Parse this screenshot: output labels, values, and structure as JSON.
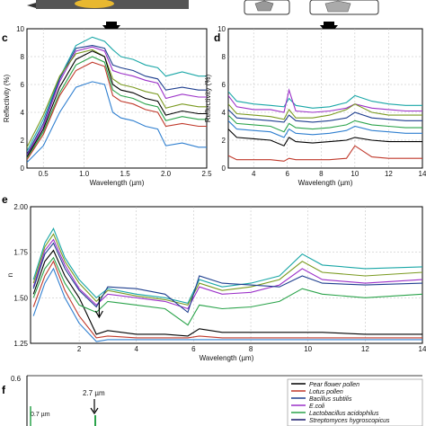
{
  "panels": {
    "c": "c",
    "d": "d",
    "e": "e",
    "f": "f"
  },
  "annotations": {
    "f_arrow_label": "2.7 µm",
    "f_left_label": "0.7 µm",
    "f_ytop": "0.6"
  },
  "legend": {
    "entries": [
      {
        "label": "Pear flower pollen",
        "color": "#000000"
      },
      {
        "label": "Lotus pollen",
        "color": "#c0392b"
      },
      {
        "label": "Bacillus subtilis",
        "color": "#1f3f8f"
      },
      {
        "label": "E.coli",
        "color": "#9b30c8"
      },
      {
        "label": "Lactobacillus acidophilus",
        "color": "#2aa34a"
      },
      {
        "label": "Streptomyces hygroscopicus",
        "color": "#1a1a6e"
      }
    ]
  },
  "chart_data": [
    {
      "type": "line",
      "panel": "c",
      "xlabel": "Wavelength (µm)",
      "ylabel": "Reflectivity (%)",
      "xlim": [
        0.3,
        2.5
      ],
      "ylim": [
        0,
        10
      ],
      "xticks": [
        "0.5",
        "1.0",
        "1.5",
        "2.0",
        "2.5"
      ],
      "yticks": [
        "0",
        "2",
        "4",
        "6",
        "8",
        "10"
      ],
      "grid": true,
      "x": [
        0.3,
        0.5,
        0.7,
        0.9,
        1.1,
        1.25,
        1.35,
        1.45,
        1.6,
        1.75,
        1.9,
        2.0,
        2.2,
        2.4,
        2.5
      ],
      "series": [
        {
          "color": "#1aa7a7",
          "values": [
            1.2,
            3.5,
            6.5,
            8.8,
            9.4,
            9.1,
            8.5,
            8.0,
            7.8,
            7.4,
            7.2,
            6.6,
            6.9,
            6.6,
            6.6
          ]
        },
        {
          "color": "#1f3f8f",
          "values": [
            1.0,
            3.2,
            6.4,
            8.6,
            8.8,
            8.6,
            7.4,
            7.2,
            7.0,
            6.6,
            6.4,
            5.6,
            5.8,
            5.6,
            5.6
          ]
        },
        {
          "color": "#9b30c8",
          "values": [
            0.9,
            3.0,
            6.2,
            8.4,
            8.7,
            8.4,
            7.0,
            6.8,
            6.6,
            6.3,
            6.1,
            5.0,
            5.3,
            5.1,
            5.1
          ]
        },
        {
          "color": "#7a9a20",
          "values": [
            1.5,
            3.8,
            6.6,
            8.2,
            8.5,
            8.0,
            6.4,
            6.0,
            5.8,
            5.5,
            5.3,
            4.3,
            4.6,
            4.4,
            4.4
          ]
        },
        {
          "color": "#000000",
          "values": [
            0.8,
            2.8,
            5.8,
            7.8,
            8.4,
            8.0,
            6.0,
            5.6,
            5.4,
            5.0,
            4.8,
            3.8,
            4.1,
            3.9,
            3.9
          ]
        },
        {
          "color": "#2aa34a",
          "values": [
            0.7,
            2.6,
            5.4,
            7.4,
            8.0,
            7.6,
            5.6,
            5.2,
            5.0,
            4.6,
            4.4,
            3.4,
            3.7,
            3.5,
            3.5
          ]
        },
        {
          "color": "#c0392b",
          "values": [
            0.6,
            2.4,
            5.2,
            7.0,
            7.6,
            7.3,
            5.2,
            4.8,
            4.6,
            4.2,
            4.0,
            3.0,
            3.2,
            3.0,
            3.0
          ]
        },
        {
          "color": "#2f7fd0",
          "values": [
            0.4,
            1.6,
            4.0,
            5.8,
            6.2,
            6.0,
            4.0,
            3.6,
            3.4,
            3.0,
            2.8,
            1.6,
            1.8,
            1.5,
            1.5
          ]
        }
      ]
    },
    {
      "type": "line",
      "panel": "d",
      "xlabel": "Wavelength (µm)",
      "ylabel": "Reflectivity (%)",
      "xlim": [
        2.5,
        14
      ],
      "ylim": [
        0,
        10
      ],
      "xticks": [
        "4",
        "6",
        "8",
        "10",
        "12",
        "14"
      ],
      "yticks": [
        "0",
        "2",
        "4",
        "6",
        "8",
        "10"
      ],
      "grid": true,
      "x": [
        2.5,
        3.0,
        4.0,
        5.0,
        5.8,
        6.1,
        6.5,
        7.5,
        8.5,
        9.5,
        10.0,
        11,
        12,
        13,
        14
      ],
      "series": [
        {
          "color": "#1aa7a7",
          "values": [
            5.5,
            4.8,
            4.6,
            4.5,
            4.4,
            5.0,
            4.5,
            4.3,
            4.4,
            4.7,
            5.2,
            4.8,
            4.6,
            4.5,
            4.5
          ]
        },
        {
          "color": "#9b30c8",
          "values": [
            5.2,
            4.4,
            4.2,
            4.2,
            4.0,
            5.6,
            4.1,
            4.0,
            4.1,
            4.3,
            4.6,
            4.3,
            4.2,
            4.1,
            4.1
          ]
        },
        {
          "color": "#7a9a20",
          "values": [
            4.6,
            3.9,
            3.8,
            3.7,
            3.5,
            4.2,
            3.6,
            3.6,
            3.8,
            4.2,
            4.6,
            4.0,
            3.8,
            3.8,
            3.8
          ]
        },
        {
          "color": "#1f3f8f",
          "values": [
            4.2,
            3.6,
            3.5,
            3.4,
            3.3,
            3.8,
            3.4,
            3.3,
            3.4,
            3.6,
            4.0,
            3.6,
            3.5,
            3.4,
            3.4
          ]
        },
        {
          "color": "#2aa34a",
          "values": [
            3.8,
            3.2,
            3.1,
            3.0,
            2.6,
            3.2,
            2.9,
            2.8,
            2.9,
            3.1,
            3.4,
            3.1,
            3.0,
            2.9,
            2.9
          ]
        },
        {
          "color": "#2f7fd0",
          "values": [
            3.4,
            2.8,
            2.7,
            2.6,
            2.2,
            2.8,
            2.5,
            2.4,
            2.5,
            2.7,
            3.0,
            2.7,
            2.6,
            2.5,
            2.5
          ]
        },
        {
          "color": "#000000",
          "values": [
            2.8,
            2.2,
            2.1,
            2.0,
            1.6,
            2.2,
            1.9,
            1.8,
            1.9,
            2.0,
            2.2,
            2.0,
            1.9,
            1.9,
            1.9
          ]
        },
        {
          "color": "#c0392b",
          "values": [
            0.9,
            0.6,
            0.6,
            0.6,
            0.5,
            0.7,
            0.6,
            0.6,
            0.6,
            0.7,
            1.6,
            0.8,
            0.7,
            0.7,
            0.7
          ]
        }
      ]
    },
    {
      "type": "line",
      "panel": "e",
      "xlabel": "Wavelength (µm)",
      "ylabel": "n",
      "xlim": [
        0.3,
        14
      ],
      "ylim": [
        1.25,
        2.0
      ],
      "xticks": [
        "2",
        "4",
        "6",
        "8",
        "10",
        "12",
        "14"
      ],
      "yticks": [
        "1.25",
        "1.50",
        "1.75",
        "2.00"
      ],
      "grid": true,
      "x": [
        0.4,
        0.8,
        1.1,
        1.5,
        2.0,
        2.6,
        3.0,
        4.0,
        5.0,
        5.8,
        6.2,
        7.0,
        8.0,
        9.0,
        9.8,
        10.5,
        12,
        14
      ],
      "series": [
        {
          "color": "#1aa7a7",
          "values": [
            1.6,
            1.8,
            1.88,
            1.72,
            1.6,
            1.5,
            1.55,
            1.52,
            1.5,
            1.47,
            1.6,
            1.56,
            1.58,
            1.62,
            1.74,
            1.68,
            1.66,
            1.67
          ]
        },
        {
          "color": "#7a9a20",
          "values": [
            1.58,
            1.78,
            1.85,
            1.7,
            1.58,
            1.48,
            1.54,
            1.51,
            1.49,
            1.46,
            1.58,
            1.54,
            1.56,
            1.6,
            1.7,
            1.64,
            1.62,
            1.64
          ]
        },
        {
          "color": "#9b30c8",
          "values": [
            1.56,
            1.76,
            1.82,
            1.68,
            1.55,
            1.46,
            1.52,
            1.5,
            1.48,
            1.44,
            1.56,
            1.52,
            1.53,
            1.57,
            1.66,
            1.6,
            1.58,
            1.6
          ]
        },
        {
          "color": "#1f3f8f",
          "values": [
            1.55,
            1.74,
            1.8,
            1.66,
            1.54,
            1.45,
            1.56,
            1.55,
            1.52,
            1.42,
            1.62,
            1.58,
            1.57,
            1.56,
            1.62,
            1.58,
            1.57,
            1.58
          ]
        },
        {
          "color": "#000000",
          "values": [
            1.52,
            1.7,
            1.76,
            1.62,
            1.5,
            1.3,
            1.32,
            1.3,
            1.3,
            1.29,
            1.33,
            1.31,
            1.31,
            1.31,
            1.31,
            1.31,
            1.3,
            1.3
          ]
        },
        {
          "color": "#2aa34a",
          "values": [
            1.5,
            1.66,
            1.72,
            1.58,
            1.46,
            1.42,
            1.48,
            1.46,
            1.44,
            1.35,
            1.46,
            1.44,
            1.45,
            1.48,
            1.55,
            1.52,
            1.5,
            1.52
          ]
        },
        {
          "color": "#c0392b",
          "values": [
            1.45,
            1.62,
            1.7,
            1.54,
            1.4,
            1.28,
            1.29,
            1.28,
            1.28,
            1.28,
            1.29,
            1.28,
            1.28,
            1.28,
            1.28,
            1.28,
            1.28,
            1.28
          ]
        },
        {
          "color": "#2f7fd0",
          "values": [
            1.4,
            1.58,
            1.66,
            1.5,
            1.36,
            1.26,
            1.27,
            1.27,
            1.27,
            1.27,
            1.27,
            1.27,
            1.27,
            1.27,
            1.27,
            1.27,
            1.27,
            1.27
          ]
        }
      ]
    }
  ]
}
